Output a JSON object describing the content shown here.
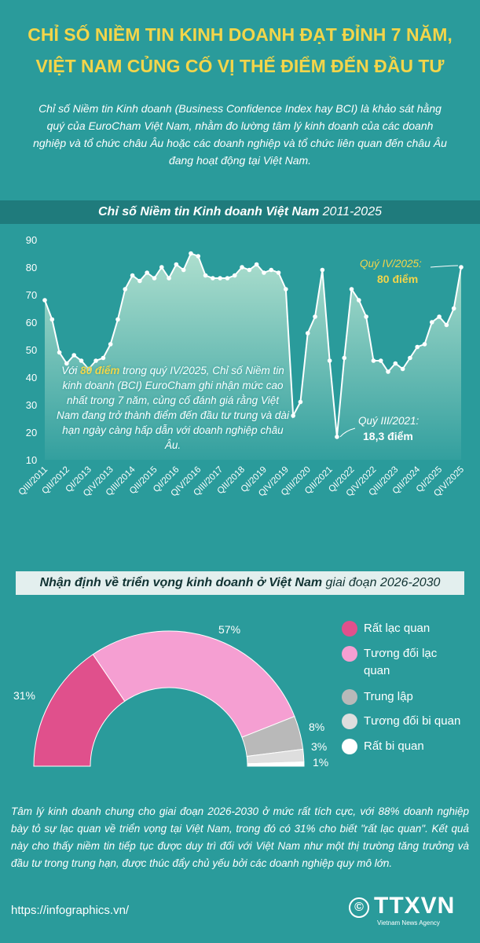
{
  "header": {
    "title_lines": [
      "CHỈ SỐ NIỀM TIN KINH DOANH ĐẠT ĐỈNH 7 NĂM,",
      "VIỆT NAM CỦNG CỐ VỊ THẾ ĐIỂM ĐẾN ĐẦU TƯ"
    ],
    "intro": "Chỉ số Niềm tin Kinh doanh (Business Confidence Index hay BCI) là khảo sát hằng quý của EuroCham Việt Nam, nhằm đo lường tâm lý kinh doanh của các doanh nghiệp và tổ chức châu Âu hoặc các doanh nghiệp và tổ chức liên quan đến châu Âu đang hoạt động tại Việt Nam."
  },
  "chart_data": [
    {
      "type": "line",
      "title": "Chỉ số Niềm tin Kinh doanh Việt Nam",
      "title_suffix": "2011-2025",
      "categories": [
        "QIII/2011",
        null,
        null,
        "QII/2012",
        null,
        null,
        "QI/2013",
        null,
        null,
        "QIV/2013",
        null,
        null,
        "QIII/2014",
        null,
        null,
        "QII/2015",
        null,
        null,
        "QI/2016",
        null,
        null,
        "QIV/2016",
        null,
        null,
        "QIII/2017",
        null,
        null,
        "QII/2018",
        null,
        null,
        "QI/2019",
        null,
        null,
        "QIV/2019",
        null,
        null,
        "QIII/2020",
        null,
        null,
        "QII/2021",
        null,
        null,
        "QI/2022",
        null,
        null,
        "QIV/2022",
        null,
        null,
        "QIII/2023",
        null,
        null,
        "QII/2024",
        null,
        null,
        "QI/2025",
        null,
        null,
        "QIV/2025"
      ],
      "values": [
        68,
        61,
        49,
        45,
        48,
        46,
        43,
        46,
        47,
        52,
        61,
        72,
        77,
        75,
        78,
        76,
        80,
        76,
        81,
        79,
        85,
        84,
        77,
        76,
        76,
        76,
        77,
        80,
        79,
        81,
        78,
        79,
        78,
        72,
        26,
        31,
        56,
        62,
        79,
        46,
        18.3,
        47,
        72,
        68,
        62,
        46,
        46,
        42,
        45,
        43,
        47,
        51,
        52,
        60,
        62,
        59,
        65,
        80
      ],
      "color": "#ffffff",
      "ylim": [
        10,
        90
      ],
      "yticks": [
        10,
        20,
        30,
        40,
        50,
        60,
        70,
        80,
        90
      ],
      "grid": false,
      "annotations": [
        {
          "label": "Quý IV/2025:",
          "value": "80 điểm"
        },
        {
          "label": "Quý III/2021:",
          "value": "18,3 điểm"
        }
      ],
      "note": [
        "Với ",
        "80 điểm",
        " trong quý IV/2025, Chỉ số Niềm tin kinh doanh (BCI) EuroCham ghi nhận mức cao nhất trong 7 năm, củng cố đánh giá rằng Việt Nam đang trở thành điểm đến đầu tư trung và dài hạn ngày càng hấp dẫn với doanh nghiệp châu Âu."
      ]
    },
    {
      "type": "half-donut",
      "title": "Nhận định về triển vọng kinh doanh ở Việt Nam",
      "title_suffix": "giai đoạn 2026-2030",
      "categories": [
        "Rất lạc quan",
        "Tương đối lạc quan",
        "Trung lập",
        "Tương đối bi quan",
        "Rất bi quan"
      ],
      "values": [
        31,
        57,
        8,
        3,
        1
      ],
      "value_labels": [
        "31%",
        "57%",
        "8%",
        "3%",
        "1%"
      ],
      "colors": [
        "#e0508c",
        "#f59fd2",
        "#b9b9b9",
        "#dedede",
        "#ffffff"
      ]
    }
  ],
  "footer": {
    "text": "Tâm lý kinh doanh chung cho giai đoạn 2026-2030 ở mức rất tích cực, với 88% doanh nghiệp bày tỏ sự lạc quan về triển vọng tại Việt Nam, trong đó có 31% cho biết \"rất lạc quan\". Kết quả này cho thấy niềm tin tiếp tục được duy trì đối với Việt Nam như một thị trường tăng trưởng và đầu tư trong trung hạn, được thúc đẩy chủ yếu bởi các doanh nghiệp quy mô lớn.",
    "url": "https://infographics.vn/",
    "copyright": "©",
    "logo": "TTXVN",
    "agency": "Vietnam News Agency"
  }
}
